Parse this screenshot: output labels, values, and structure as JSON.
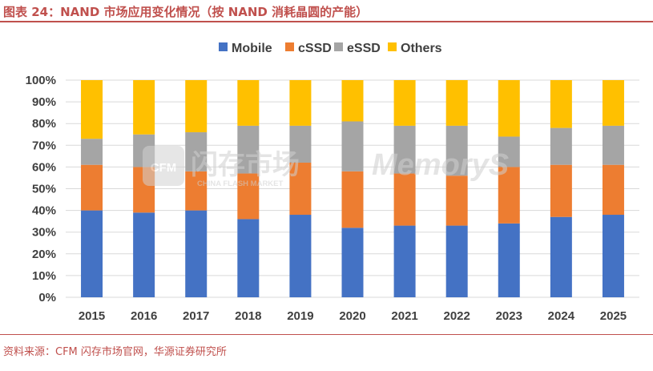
{
  "caption": {
    "title": "图表 24：NAND 市场应用变化情况（按 NAND 消耗晶圆的产能）",
    "source": "资料来源：CFM 闪存市场官网，华源证券研究所"
  },
  "watermark": {
    "brand_cn": "闪存市场",
    "brand_en": "CHINA FLASH MARKET",
    "brand_abbr": "CFM",
    "memorys": "MemoryS"
  },
  "colors": {
    "Mobile": "#4472c4",
    "cSSD": "#ed7d31",
    "eSSD": "#a5a5a5",
    "Others": "#ffc000",
    "accent": "#c0504d"
  },
  "chart_data": {
    "type": "bar",
    "stacked": true,
    "categories": [
      "2015",
      "2016",
      "2017",
      "2018",
      "2019",
      "2020",
      "2021",
      "2022",
      "2023",
      "2024",
      "2025"
    ],
    "series": [
      {
        "name": "Mobile",
        "values": [
          40,
          39,
          40,
          36,
          38,
          32,
          33,
          33,
          34,
          37,
          38
        ]
      },
      {
        "name": "cSSD",
        "values": [
          21,
          21,
          18,
          21,
          24,
          26,
          24,
          23,
          26,
          24,
          23
        ]
      },
      {
        "name": "eSSD",
        "values": [
          12,
          15,
          18,
          22,
          17,
          23,
          22,
          23,
          14,
          17,
          18
        ]
      },
      {
        "name": "Others",
        "values": [
          27,
          25,
          24,
          21,
          21,
          19,
          21,
          21,
          26,
          22,
          21
        ]
      }
    ],
    "yticks": [
      "0%",
      "10%",
      "20%",
      "30%",
      "40%",
      "50%",
      "60%",
      "70%",
      "80%",
      "90%",
      "100%"
    ],
    "ylim": [
      0,
      100
    ],
    "grid": true,
    "legend": "top-center"
  }
}
